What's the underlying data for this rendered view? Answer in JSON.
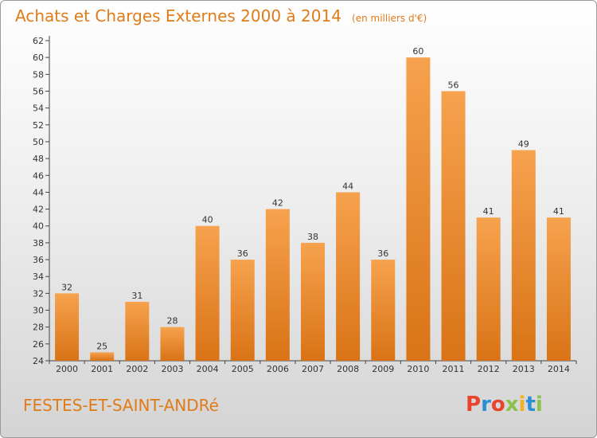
{
  "title": "Achats et Charges Externes 2000 à 2014",
  "unit_note": "(en milliers d'€)",
  "commune": "FESTES-ET-SAINT-ANDRé",
  "logo_text": "Proxiti",
  "colors": {
    "title": "#e07b18",
    "bar_light": "#f6a24e",
    "bar_dark": "#d97316",
    "logo_letters": [
      "#e8452c",
      "#2b8fd6",
      "#e8452c",
      "#8bc34a",
      "#f1b323",
      "#2b8fd6",
      "#8bc34a"
    ]
  },
  "chart_data": {
    "type": "bar",
    "categories": [
      "2000",
      "2001",
      "2002",
      "2003",
      "2004",
      "2005",
      "2006",
      "2007",
      "2008",
      "2009",
      "2010",
      "2011",
      "2012",
      "2013",
      "2014"
    ],
    "values": [
      32,
      25,
      31,
      28,
      40,
      36,
      42,
      38,
      44,
      36,
      60,
      56,
      41,
      49,
      41
    ],
    "ylim": [
      24,
      62
    ],
    "ytick_step": 2,
    "grid": false,
    "data_labels": true
  }
}
